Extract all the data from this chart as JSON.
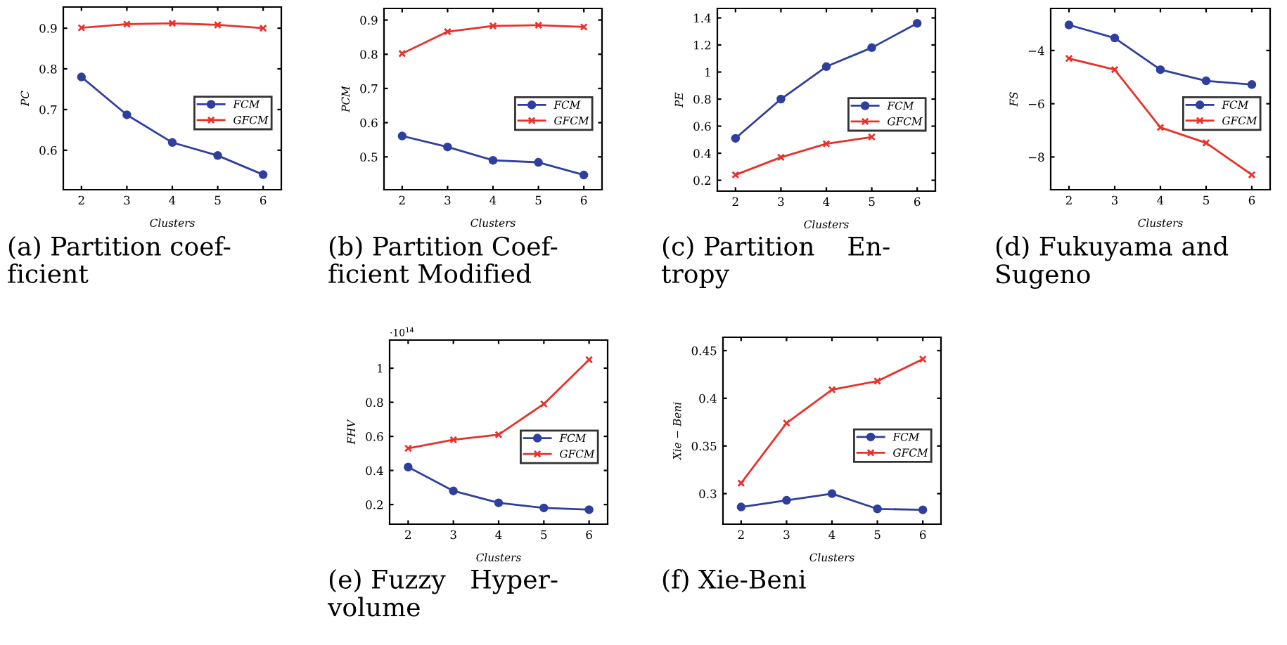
{
  "chart_data": [
    {
      "type": "line",
      "x": [
        2,
        3,
        4,
        5,
        6
      ],
      "xlabel": "Clusters",
      "ylabel": "PC",
      "xlim": [
        1.6,
        6.4
      ],
      "xticks": [
        2,
        3,
        4,
        5,
        6
      ],
      "ylim": [
        0.503,
        0.952
      ],
      "yticks": [
        0.6,
        0.7,
        0.8,
        0.9
      ],
      "legend": "right",
      "grid": false,
      "annotations": [
        "(a) Partition coef-\nficient"
      ],
      "series": [
        {
          "name": "FCM",
          "color": "#2e3f9e",
          "marker": "circle",
          "values": [
            0.78,
            0.687,
            0.619,
            0.587,
            0.54
          ]
        },
        {
          "name": "GFCM",
          "color": "#e8312a",
          "marker": "cross",
          "values": [
            0.901,
            0.91,
            0.912,
            0.908,
            0.9
          ]
        }
      ]
    },
    {
      "type": "line",
      "x": [
        2,
        3,
        4,
        5,
        6
      ],
      "xlabel": "Clusters",
      "ylabel": "PCM",
      "xlim": [
        1.6,
        6.4
      ],
      "xticks": [
        2,
        3,
        4,
        5,
        6
      ],
      "ylim": [
        0.404,
        0.934
      ],
      "yticks": [
        0.5,
        0.6,
        0.7,
        0.8,
        0.9
      ],
      "legend": "right",
      "grid": false,
      "annotations": [
        "(b) Partition Coef-\nficient Modified"
      ],
      "series": [
        {
          "name": "FCM",
          "color": "#2e3f9e",
          "marker": "circle",
          "values": [
            0.561,
            0.529,
            0.49,
            0.484,
            0.447
          ]
        },
        {
          "name": "GFCM",
          "color": "#e8312a",
          "marker": "cross",
          "values": [
            0.802,
            0.866,
            0.883,
            0.885,
            0.88
          ]
        }
      ]
    },
    {
      "type": "line",
      "x": [
        2,
        3,
        4,
        5,
        6
      ],
      "xlabel": "Clusters",
      "ylabel": "PE",
      "xlim": [
        1.6,
        6.4
      ],
      "xticks": [
        2,
        3,
        4,
        5,
        6
      ],
      "ylim": [
        0.12,
        1.47
      ],
      "yticks": [
        0.2,
        0.4,
        0.6,
        0.8,
        1,
        1.2,
        1.4
      ],
      "legend": "right",
      "grid": false,
      "annotations": [
        "(c) Partition    En-\ntropy"
      ],
      "series": [
        {
          "name": "FCM",
          "color": "#2e3f9e",
          "marker": "circle",
          "values": [
            0.51,
            0.8,
            1.04,
            1.18,
            1.36
          ]
        },
        {
          "name": "GFCM",
          "color": "#e8312a",
          "marker": "cross",
          "values": [
            0.24,
            0.37,
            0.47,
            0.52,
            null
          ]
        }
      ]
    },
    {
      "type": "line",
      "x": [
        2,
        3,
        4,
        5,
        6
      ],
      "xlabel": "Clusters",
      "ylabel": "FS",
      "xlim": [
        1.6,
        6.4
      ],
      "xticks": [
        2,
        3,
        4,
        5,
        6
      ],
      "ylim": [
        -9.23,
        -2.42
      ],
      "yticks": [
        {
          "value": -8,
          "label": "−8"
        },
        {
          "value": -6,
          "label": "−6"
        },
        {
          "value": -4,
          "label": "−4"
        }
      ],
      "legend": "right",
      "grid": false,
      "annotations": [
        "(d) Fukuyama and\nSugeno"
      ],
      "series": [
        {
          "name": "FCM",
          "color": "#2e3f9e",
          "marker": "circle",
          "values": [
            -3.04,
            -3.53,
            -4.72,
            -5.14,
            -5.28
          ]
        },
        {
          "name": "GFCM",
          "color": "#e8312a",
          "marker": "cross",
          "values": [
            -4.3,
            -4.72,
            -6.89,
            -7.47,
            -8.67
          ]
        }
      ]
    },
    {
      "type": "line",
      "x": [
        2,
        3,
        4,
        5,
        6
      ],
      "xlabel": "Clusters",
      "ylabel": "FHV",
      "xlim": [
        1.59,
        6.41
      ],
      "xticks": [
        2,
        3,
        4,
        5,
        6
      ],
      "ylim": [
        0.085,
        1.165
      ],
      "yticks": [
        0.2,
        0.4,
        0.6,
        0.8,
        1
      ],
      "legend": "right",
      "grid": false,
      "annotations": [
        "·10$^{14}$",
        "(e) Fuzzy   Hyper-\nvolume"
      ],
      "series": [
        {
          "name": "FCM",
          "color": "#2e3f9e",
          "marker": "circle",
          "values": [
            0.42,
            0.28,
            0.21,
            0.18,
            0.17
          ]
        },
        {
          "name": "GFCM",
          "color": "#e8312a",
          "marker": "cross",
          "values": [
            0.53,
            0.58,
            0.61,
            0.79,
            1.05
          ]
        }
      ]
    },
    {
      "type": "line",
      "x": [
        2,
        3,
        4,
        5,
        6
      ],
      "xlabel": "Clusters",
      "ylabel": "Xie − Beni",
      "xlim": [
        1.6,
        6.4
      ],
      "xticks": [
        2,
        3,
        4,
        5,
        6
      ],
      "ylim": [
        0.268,
        0.464
      ],
      "yticks": [
        0.3,
        0.35,
        0.4,
        0.45
      ],
      "legend": "right",
      "grid": false,
      "annotations": [
        "(f) Xie-Beni"
      ],
      "series": [
        {
          "name": "FCM",
          "color": "#2e3f9e",
          "marker": "circle",
          "values": [
            0.286,
            0.293,
            0.3,
            0.284,
            0.283
          ]
        },
        {
          "name": "GFCM",
          "color": "#e8312a",
          "marker": "cross",
          "values": [
            0.311,
            0.374,
            0.409,
            0.418,
            0.441
          ]
        }
      ]
    }
  ]
}
